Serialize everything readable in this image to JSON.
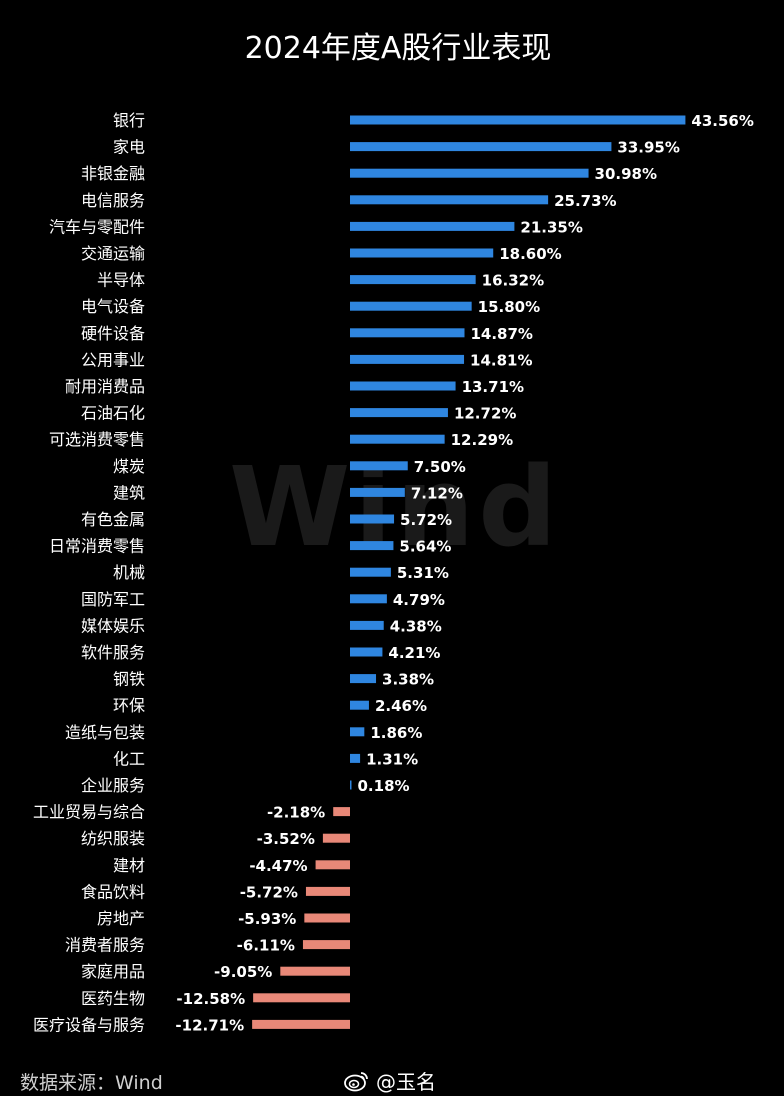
{
  "chart_data": {
    "type": "bar",
    "orientation": "horizontal",
    "title": "2024年度A股行业表现",
    "watermark": "Wind",
    "positive_color": "#2f86e0",
    "negative_color": "#e88878",
    "categories": [
      "银行",
      "家电",
      "非银金融",
      "电信服务",
      "汽车与零配件",
      "交通运输",
      "半导体",
      "电气设备",
      "硬件设备",
      "公用事业",
      "耐用消费品",
      "石油石化",
      "可选消费零售",
      "煤炭",
      "建筑",
      "有色金属",
      "日常消费零售",
      "机械",
      "国防军工",
      "媒体娱乐",
      "软件服务",
      "钢铁",
      "环保",
      "造纸与包装",
      "化工",
      "企业服务",
      "工业贸易与综合",
      "纺织服装",
      "建材",
      "食品饮料",
      "房地产",
      "消费者服务",
      "家庭用品",
      "医药生物",
      "医疗设备与服务"
    ],
    "values": [
      43.56,
      33.95,
      30.98,
      25.73,
      21.35,
      18.6,
      16.32,
      15.8,
      14.87,
      14.81,
      13.71,
      12.72,
      12.29,
      7.5,
      7.12,
      5.72,
      5.64,
      5.31,
      4.79,
      4.38,
      4.21,
      3.38,
      2.46,
      1.86,
      1.31,
      0.18,
      -2.18,
      -3.52,
      -4.47,
      -5.72,
      -5.93,
      -6.11,
      -9.05,
      -12.58,
      -12.71
    ],
    "labels": [
      "43.56%",
      "33.95%",
      "30.98%",
      "25.73%",
      "21.35%",
      "18.60%",
      "16.32%",
      "15.80%",
      "14.87%",
      "14.81%",
      "13.71%",
      "12.72%",
      "12.29%",
      "7.50%",
      "7.12%",
      "5.72%",
      "5.64%",
      "5.31%",
      "4.79%",
      "4.38%",
      "4.21%",
      "3.38%",
      "2.46%",
      "1.86%",
      "1.31%",
      "0.18%",
      "-2.18%",
      "-3.52%",
      "-4.47%",
      "-5.72%",
      "-5.93%",
      "-6.11%",
      "-9.05%",
      "-12.58%",
      "-12.71%"
    ]
  },
  "footer": {
    "source": "数据来源：Wind",
    "author": "@玉名"
  }
}
